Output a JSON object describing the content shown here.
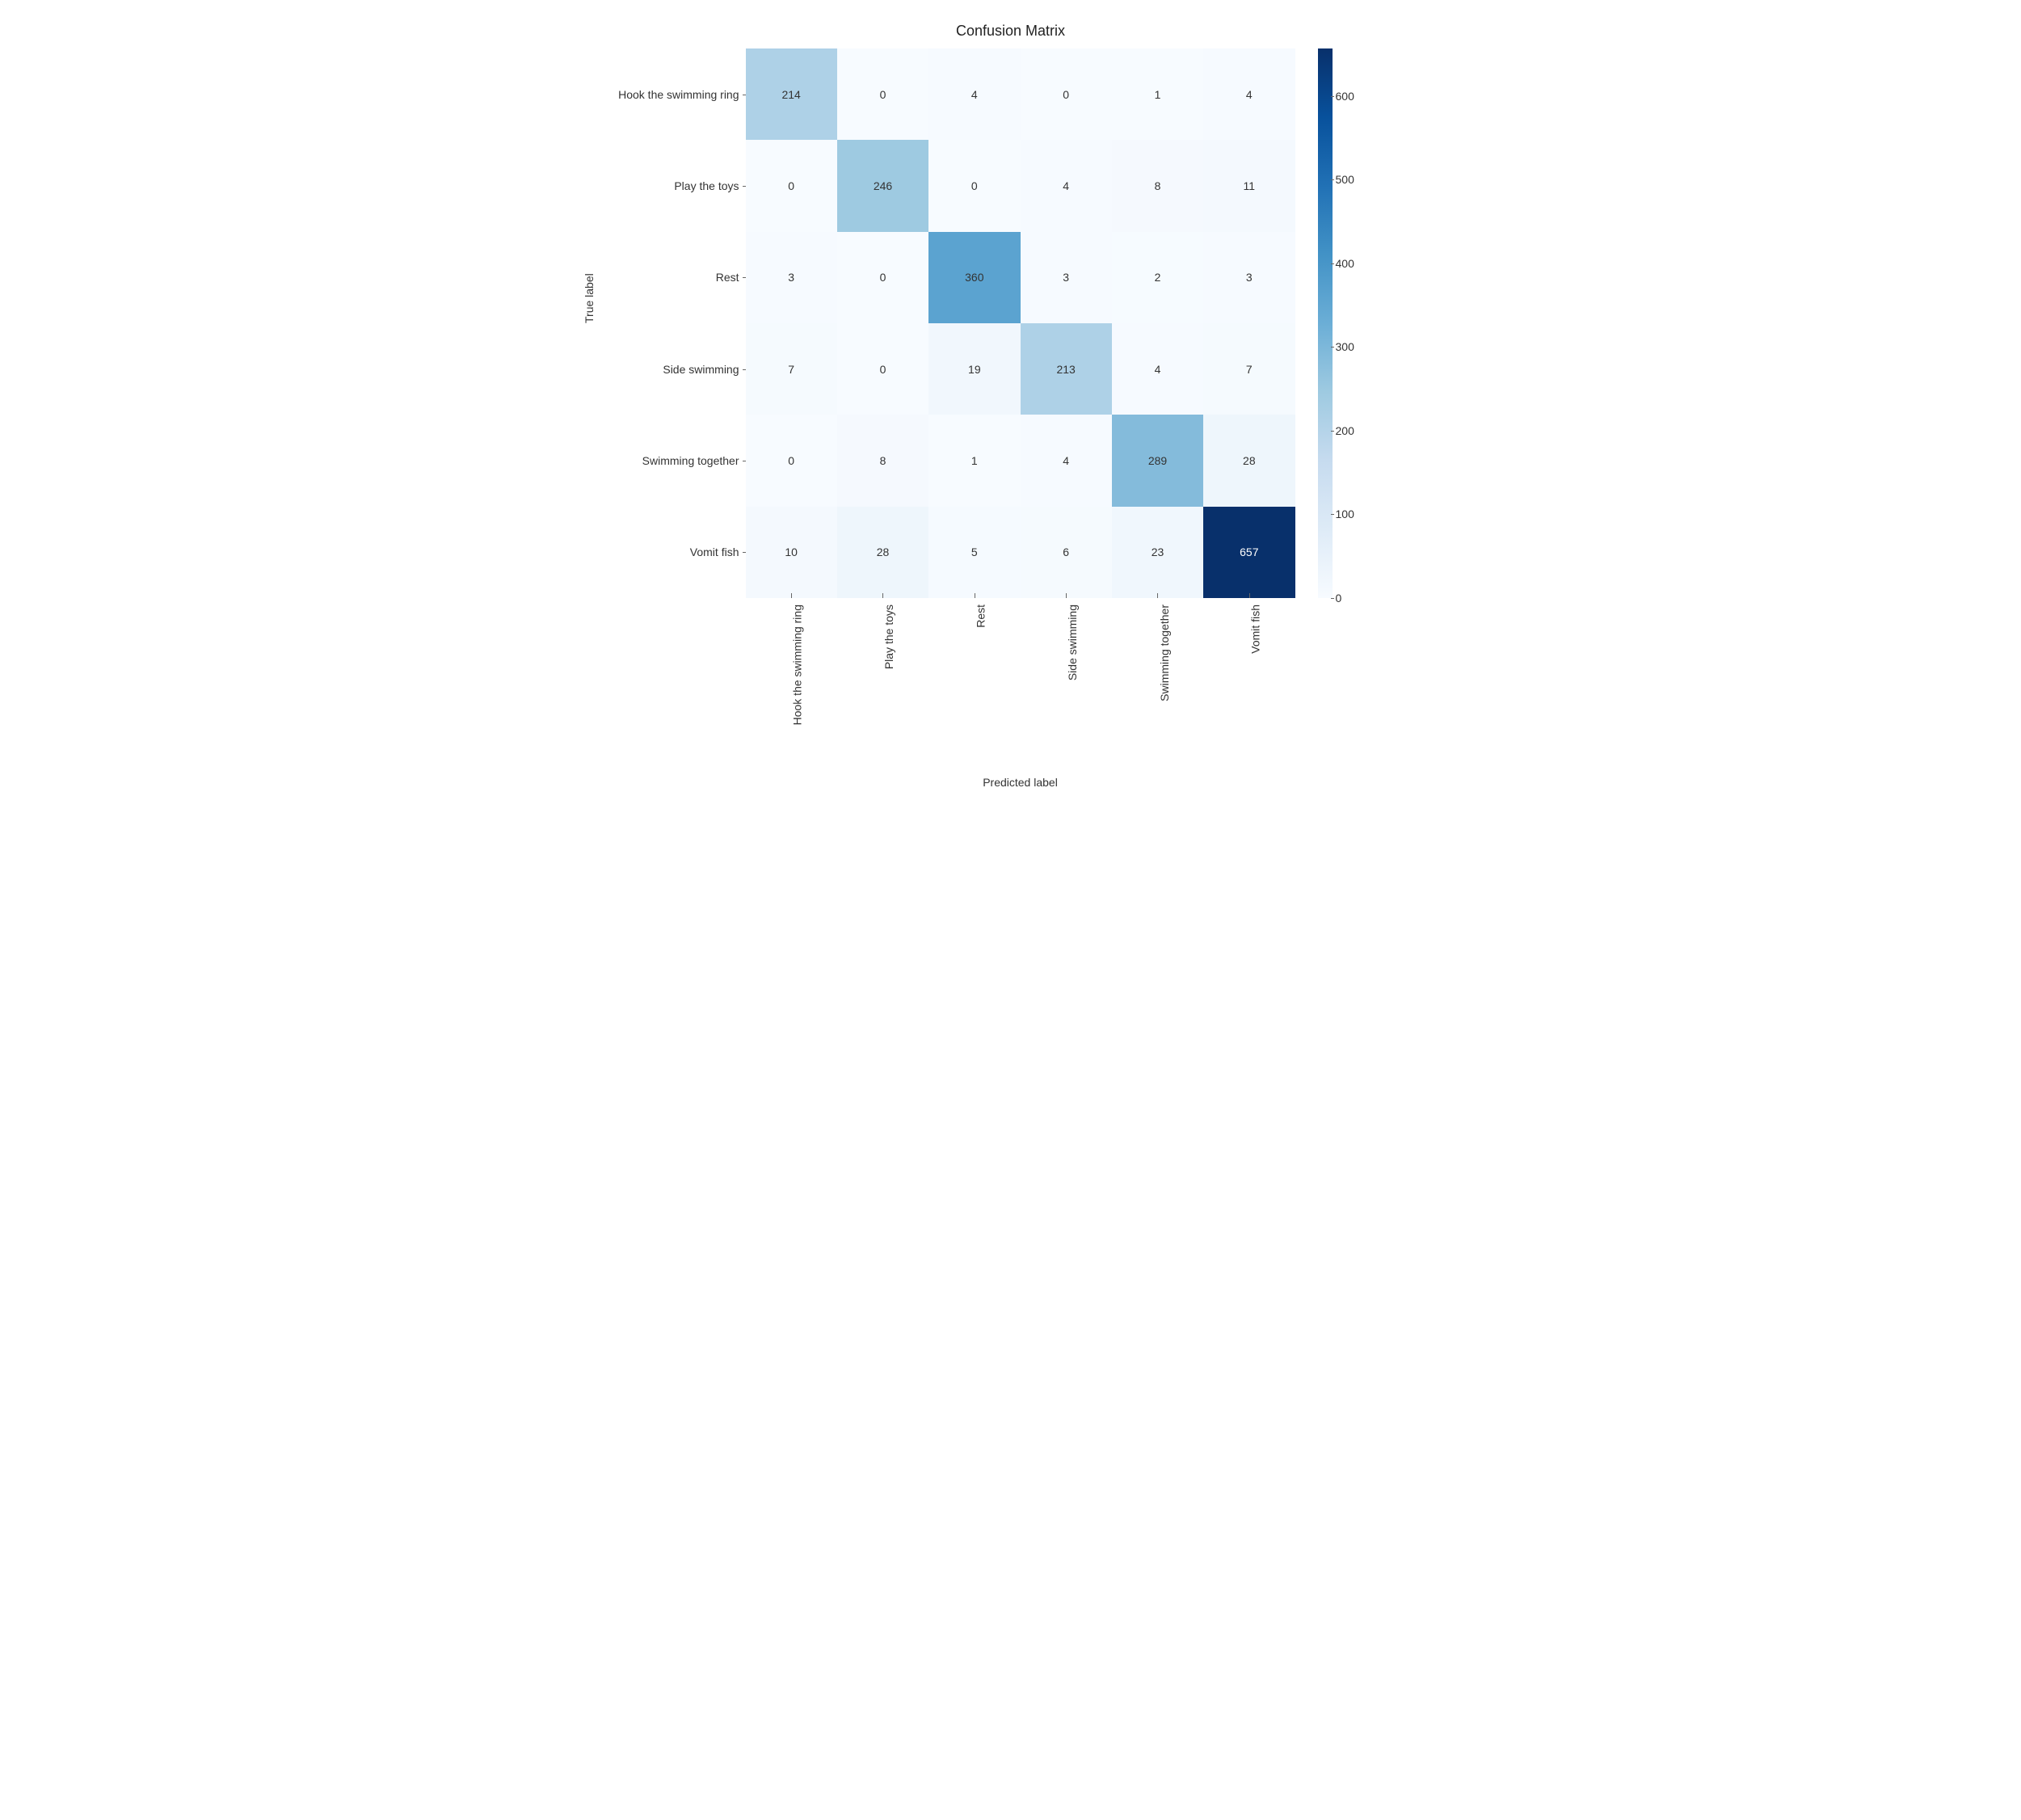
{
  "confusion_matrix": {
    "type": "heatmap",
    "title": "Confusion Matrix",
    "title_fontsize": 18,
    "xlabel": "Predicted label",
    "ylabel": "True label",
    "label_fontsize": 14,
    "tick_fontsize": 14,
    "cell_fontsize": 14,
    "categories": [
      "Hook the swimming ring",
      "Play the toys",
      "Rest",
      "Side swimming",
      "Swimming together",
      "Vomit fish"
    ],
    "values": [
      [
        214,
        0,
        4,
        0,
        1,
        4
      ],
      [
        0,
        246,
        0,
        4,
        8,
        11
      ],
      [
        3,
        0,
        360,
        3,
        2,
        3
      ],
      [
        7,
        0,
        19,
        213,
        4,
        7
      ],
      [
        0,
        8,
        1,
        4,
        289,
        28
      ],
      [
        10,
        28,
        5,
        6,
        23,
        657
      ]
    ],
    "vmin": 0,
    "vmax": 657,
    "cbar_ticks": [
      0,
      100,
      200,
      300,
      400,
      500,
      600
    ],
    "colormap": {
      "name": "Blues",
      "stops": [
        {
          "t": 0.0,
          "color": "#f7fbff"
        },
        {
          "t": 0.125,
          "color": "#deebf7"
        },
        {
          "t": 0.25,
          "color": "#c6dbef"
        },
        {
          "t": 0.375,
          "color": "#9ecae1"
        },
        {
          "t": 0.5,
          "color": "#6baed6"
        },
        {
          "t": 0.625,
          "color": "#4292c6"
        },
        {
          "t": 0.75,
          "color": "#2171b5"
        },
        {
          "t": 0.875,
          "color": "#08519c"
        },
        {
          "t": 1.0,
          "color": "#08306b"
        }
      ]
    },
    "dark_text_color": "#333333",
    "light_text_color": "#ffffff",
    "light_text_threshold": 0.55,
    "background_color": "#ffffff",
    "n_rows": 6,
    "n_cols": 6
  }
}
